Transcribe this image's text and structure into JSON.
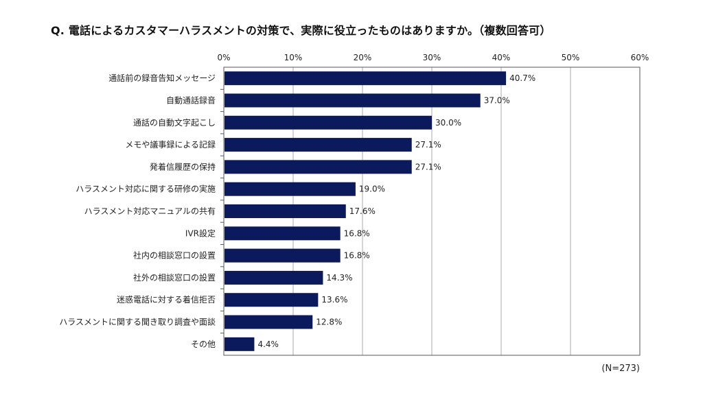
{
  "chart_data": {
    "type": "bar",
    "orientation": "horizontal",
    "title": "Q. 電話によるカスタマーハラスメントの対策で、実際に役立ったものはありますか。（複数回答可）",
    "categories": [
      "通話前の録音告知メッセージ",
      "自動通話録音",
      "通話の自動文字起こし",
      "メモや議事録による記録",
      "発着信履歴の保持",
      "ハラスメント対応に関する研修の実施",
      "ハラスメント対応マニュアルの共有",
      "IVR設定",
      "社内の相談窓口の設置",
      "社外の相談窓口の設置",
      "迷惑電話に対する着信拒否",
      "ハラスメントに関する聞き取り調査や面談",
      "その他"
    ],
    "values": [
      40.7,
      37.0,
      30.0,
      27.1,
      27.1,
      19.0,
      17.6,
      16.8,
      16.8,
      14.3,
      13.6,
      12.8,
      4.4
    ],
    "data_labels": [
      "40.7%",
      "37.0%",
      "30.0%",
      "27.1%",
      "27.1%",
      "19.0%",
      "17.6%",
      "16.8%",
      "16.8%",
      "14.3%",
      "13.6%",
      "12.8%",
      "4.4%"
    ],
    "xlim": [
      0,
      60
    ],
    "x_ticks": [
      "0%",
      "10%",
      "20%",
      "30%",
      "40%",
      "50%",
      "60%"
    ],
    "x_axis_position": "top",
    "grid": true,
    "bar_color": "#0b1a5c",
    "note": "(N=273)"
  }
}
